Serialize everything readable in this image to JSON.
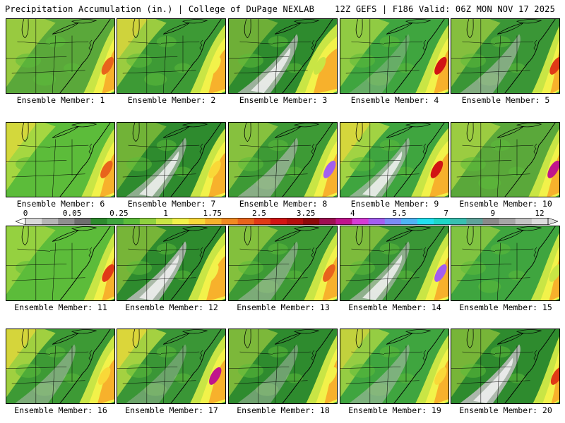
{
  "header": {
    "left_title": "Precipitation Accumulation (in.) | College of DuPage NEXLAB",
    "right_title": "12Z GEFS | F186 Valid: 06Z MON NOV 17 2025"
  },
  "colorbar": {
    "tick_labels": [
      "0",
      "0.05",
      "0.25",
      "1",
      "1.75",
      "2.5",
      "3.25",
      "4",
      "5.5",
      "7",
      "9",
      "12"
    ],
    "colors": [
      "#d9d9d9",
      "#b5b5b5",
      "#8f8f8f",
      "#6e6e6e",
      "#2e8b2e",
      "#3fa53f",
      "#5cbc3a",
      "#8fd13f",
      "#c9e545",
      "#f2f24a",
      "#f9d838",
      "#f7b12c",
      "#f08a22",
      "#e8641c",
      "#e03a17",
      "#d11414",
      "#b30f0f",
      "#8c0b0b",
      "#9e0f52",
      "#c0148c",
      "#d63cd6",
      "#a35ef0",
      "#7b8bf5",
      "#4fb4f5",
      "#22e0f0",
      "#1fd6c8",
      "#39bfb0",
      "#5fa39a",
      "#8a8a8a",
      "#a6a6a6",
      "#c4c4c4",
      "#dddddd"
    ],
    "arrow_color": "#ffffff"
  },
  "members": [
    {
      "label": "Ensemble Member: 1",
      "base": "#5aa83a",
      "band": [
        0.82,
        0.95
      ],
      "core_color": "#e8641c",
      "dry": 0.0,
      "wet_nw": 0.35
    },
    {
      "label": "Ensemble Member: 2",
      "base": "#3d9a35",
      "band": [
        0.78,
        0.92
      ],
      "core_color": "#f2f24a",
      "dry": 0.0,
      "wet_nw": 0.55
    },
    {
      "label": "Ensemble Member: 3",
      "base": "#2e8b2e",
      "band": [
        0.72,
        0.86
      ],
      "core_color": "#c9e545",
      "dry": 0.75,
      "wet_nw": 0.1
    },
    {
      "label": "Ensemble Member: 4",
      "base": "#3fa53f",
      "band": [
        0.8,
        0.95
      ],
      "core_color": "#d11414",
      "dry": 0.1,
      "wet_nw": 0.4
    },
    {
      "label": "Ensemble Member: 5",
      "base": "#3a9636",
      "band": [
        0.85,
        0.98
      ],
      "core_color": "#e03a17",
      "dry": 0.45,
      "wet_nw": 0.3
    },
    {
      "label": "Ensemble Member: 6",
      "base": "#5cbc3a",
      "band": [
        0.8,
        0.95
      ],
      "core_color": "#e8641c",
      "dry": 0.0,
      "wet_nw": 0.55
    },
    {
      "label": "Ensemble Member: 7",
      "base": "#2e8b2e",
      "band": [
        0.78,
        0.92
      ],
      "core_color": "#f9d838",
      "dry": 0.6,
      "wet_nw": 0.15
    },
    {
      "label": "Ensemble Member: 8",
      "base": "#3d9a35",
      "band": [
        0.8,
        0.96
      ],
      "core_color": "#a35ef0",
      "dry": 0.5,
      "wet_nw": 0.3
    },
    {
      "label": "Ensemble Member: 9",
      "base": "#3fa53f",
      "band": [
        0.76,
        0.92
      ],
      "core_color": "#d11414",
      "dry": 0.55,
      "wet_nw": 0.6
    },
    {
      "label": "Ensemble Member: 10",
      "base": "#5aa83a",
      "band": [
        0.82,
        0.97
      ],
      "core_color": "#c0148c",
      "dry": 0.0,
      "wet_nw": 0.4
    },
    {
      "label": "Ensemble Member: 11",
      "base": "#5cbc3a",
      "band": [
        0.82,
        0.96
      ],
      "core_color": "#e03a17",
      "dry": 0.0,
      "wet_nw": 0.3
    },
    {
      "label": "Ensemble Member: 12",
      "base": "#2e8b2e",
      "band": [
        0.76,
        0.9
      ],
      "core_color": "#f2f24a",
      "dry": 0.85,
      "wet_nw": 0.2
    },
    {
      "label": "Ensemble Member: 13",
      "base": "#3d9a35",
      "band": [
        0.8,
        0.95
      ],
      "core_color": "#e8641c",
      "dry": 0.35,
      "wet_nw": 0.25
    },
    {
      "label": "Ensemble Member: 14",
      "base": "#3a9636",
      "band": [
        0.8,
        0.95
      ],
      "core_color": "#a35ef0",
      "dry": 0.55,
      "wet_nw": 0.2
    },
    {
      "label": "Ensemble Member: 15",
      "base": "#3fa53f",
      "band": [
        0.84,
        0.98
      ],
      "core_color": "#c9e545",
      "dry": 0.0,
      "wet_nw": 0.2
    },
    {
      "label": "Ensemble Member: 16",
      "base": "#3d9a35",
      "band": [
        0.78,
        0.93
      ],
      "core_color": "#f9d838",
      "dry": 0.35,
      "wet_nw": 0.6
    },
    {
      "label": "Ensemble Member: 17",
      "base": "#3a9636",
      "band": [
        0.78,
        0.93
      ],
      "core_color": "#c0148c",
      "dry": 0.2,
      "wet_nw": 0.65
    },
    {
      "label": "Ensemble Member: 18",
      "base": "#2e8b2e",
      "band": [
        0.82,
        0.96
      ],
      "core_color": "#f2f24a",
      "dry": 0.3,
      "wet_nw": 0.25
    },
    {
      "label": "Ensemble Member: 19",
      "base": "#3fa53f",
      "band": [
        0.8,
        0.95
      ],
      "core_color": "#f9d838",
      "dry": 0.35,
      "wet_nw": 0.45
    },
    {
      "label": "Ensemble Member: 20",
      "base": "#2e8b2e",
      "band": [
        0.86,
        0.99
      ],
      "core_color": "#e03a17",
      "dry": 0.9,
      "wet_nw": 0.2
    }
  ]
}
